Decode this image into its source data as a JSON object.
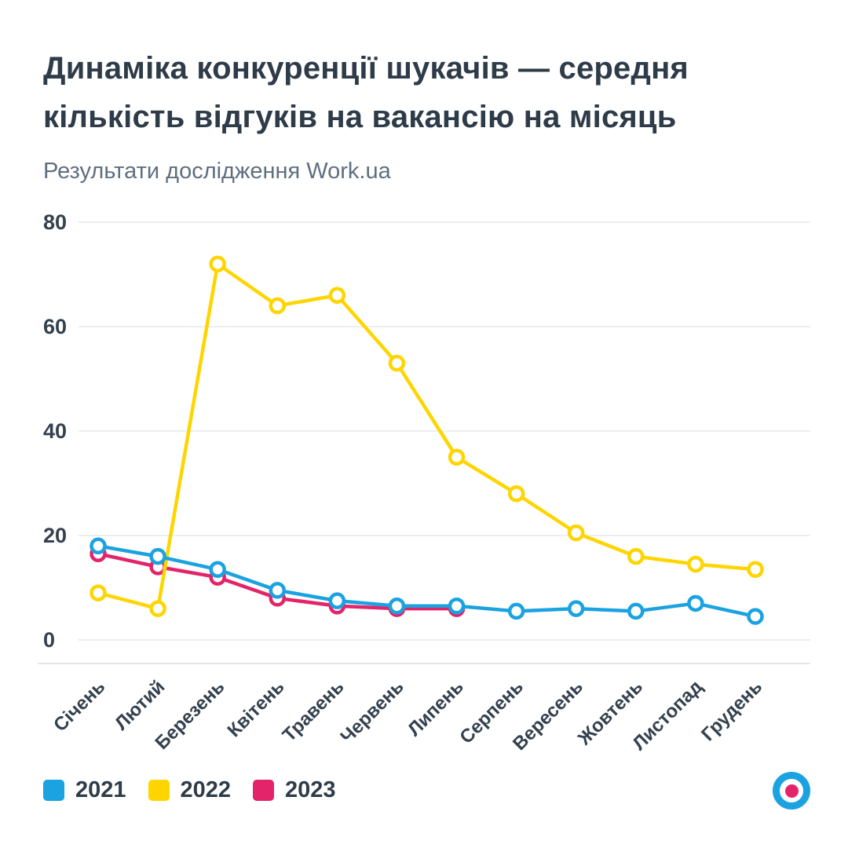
{
  "header": {
    "title_line1": "Динаміка конкуренції шукачів — середня",
    "title_line2": "кількість відгуків на вакансію на місяць",
    "subtitle": "Результати дослідження Work.ua"
  },
  "colors": {
    "blue": "#1ba2e0",
    "yellow": "#ffd500",
    "pink": "#e3246b",
    "text_dark": "#2e3b48",
    "text_muted": "#5f6f7f",
    "grid": "#eceef0",
    "axis": "#e3e6e8"
  },
  "chart_data": {
    "type": "line",
    "title": "Динаміка конкуренції шукачів — середня кількість відгуків на вакансію на місяць",
    "subtitle": "Результати дослідження Work.ua",
    "categories": [
      "Січень",
      "Лютий",
      "Березень",
      "Квітень",
      "Травень",
      "Червень",
      "Липень",
      "Серпень",
      "Вересень",
      "Жовтень",
      "Листопад",
      "Грудень"
    ],
    "yticks": [
      0,
      20,
      40,
      60,
      80
    ],
    "ylim": [
      0,
      80
    ],
    "grid": "horizontal",
    "legend_position": "bottom-left",
    "series": [
      {
        "name": "2021",
        "color": "#1ba2e0",
        "values": [
          18,
          16,
          13.5,
          9.5,
          7.5,
          6.5,
          6.5,
          5.5,
          6,
          5.5,
          7,
          4.5
        ]
      },
      {
        "name": "2022",
        "color": "#ffd500",
        "values": [
          9,
          6,
          72,
          64,
          66,
          53,
          35,
          28,
          20.5,
          16,
          14.5,
          13.5
        ]
      },
      {
        "name": "2023",
        "color": "#e3246b",
        "values": [
          16.5,
          14,
          12,
          8,
          6.5,
          6,
          6
        ]
      }
    ]
  },
  "legend": {
    "items": [
      {
        "label": "2021",
        "color": "#1ba2e0"
      },
      {
        "label": "2022",
        "color": "#ffd500"
      },
      {
        "label": "2023",
        "color": "#e3246b"
      }
    ]
  }
}
